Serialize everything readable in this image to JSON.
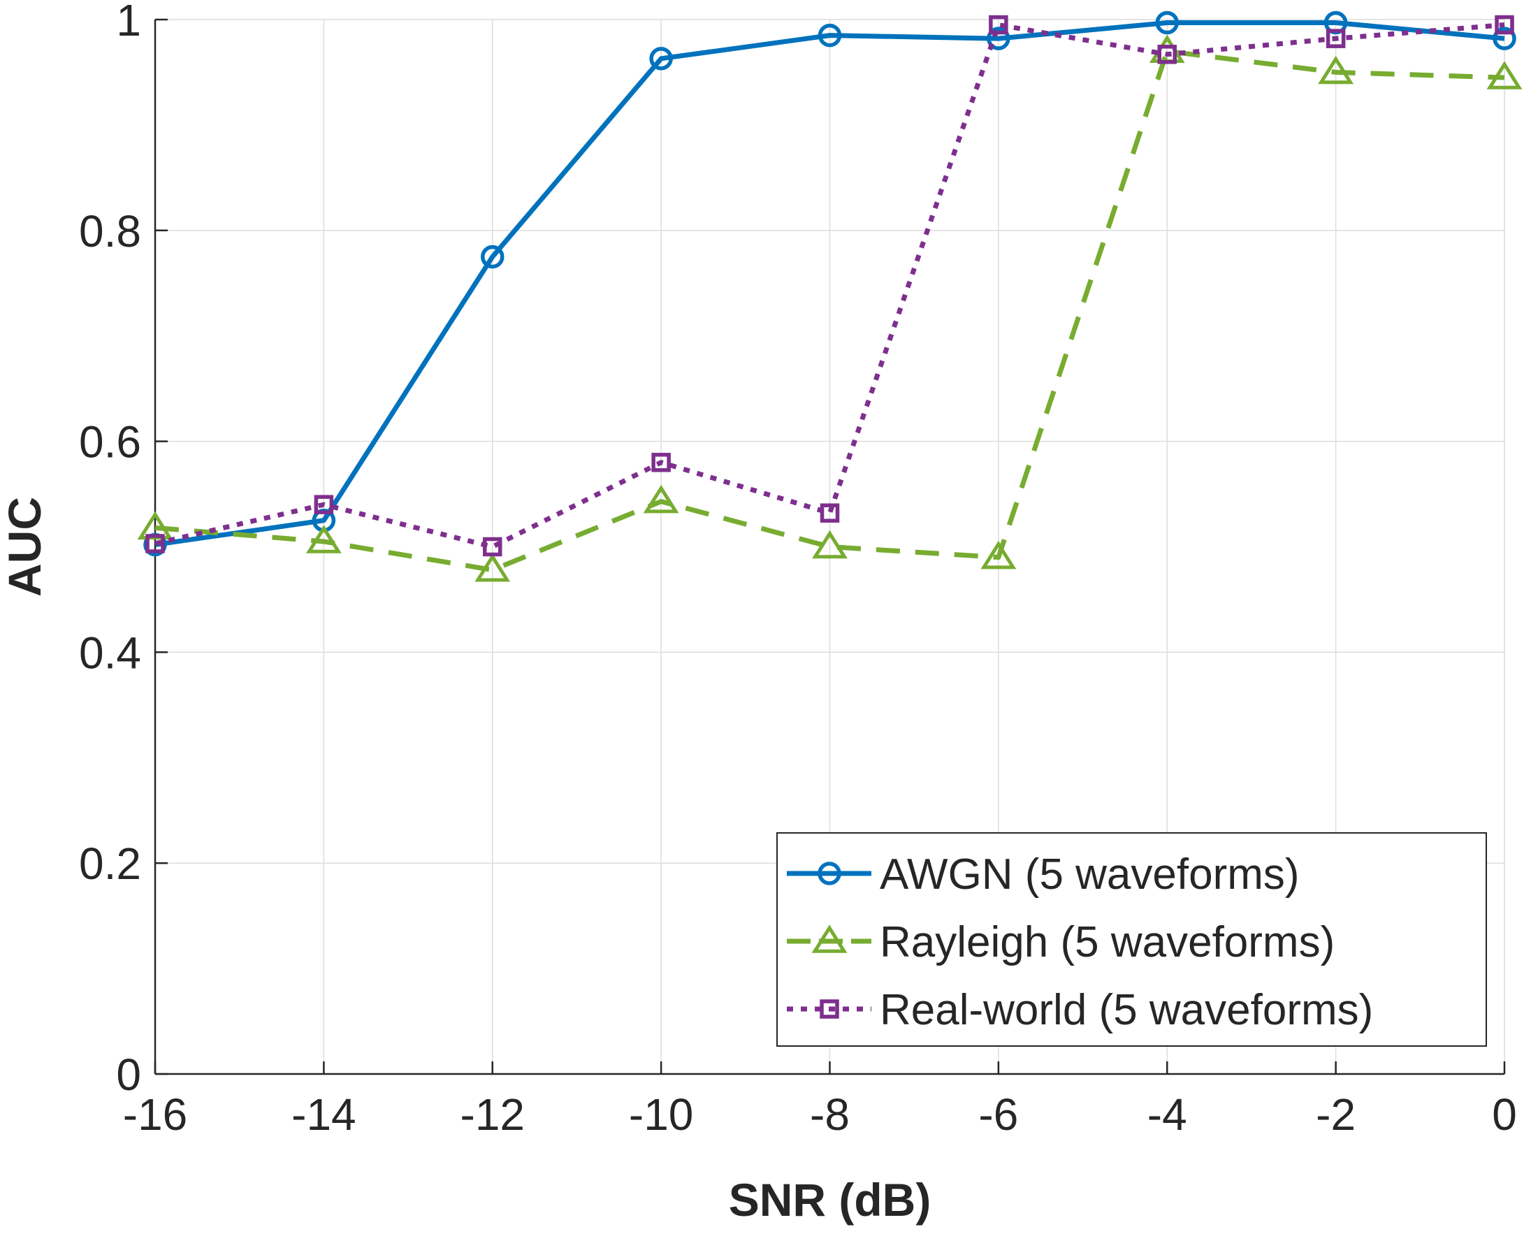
{
  "chart_data": {
    "type": "line",
    "xlabel": "SNR (dB)",
    "ylabel": "AUC",
    "x": [
      -16,
      -14,
      -12,
      -10,
      -8,
      -6,
      -4,
      -2,
      0
    ],
    "xlim": [
      -16,
      0
    ],
    "ylim": [
      0,
      1
    ],
    "xticks": [
      -16,
      -14,
      -12,
      -10,
      -8,
      -6,
      -4,
      -2,
      0
    ],
    "yticks": [
      0,
      0.2,
      0.4,
      0.6,
      0.8,
      1
    ],
    "xtick_labels": [
      "-16",
      "-14",
      "-12",
      "-10",
      "-8",
      "-6",
      "-4",
      "-2",
      "0"
    ],
    "ytick_labels": [
      "0",
      "0.2",
      "0.4",
      "0.6",
      "0.8",
      "1"
    ],
    "grid": true,
    "legend_position": "bottom-right",
    "series": [
      {
        "name": "AWGN (5 waveforms)",
        "values": [
          0.502,
          0.525,
          0.775,
          0.963,
          0.985,
          0.982,
          0.997,
          0.997,
          0.982
        ],
        "color": "#0072BD",
        "marker": "circle",
        "line_style": "solid"
      },
      {
        "name": "Rayleigh (5 waveforms)",
        "values": [
          0.518,
          0.505,
          0.478,
          0.543,
          0.5,
          0.49,
          0.97,
          0.95,
          0.945
        ],
        "color": "#77AC30",
        "marker": "triangle",
        "line_style": "dashed"
      },
      {
        "name": "Real-world (5 waveforms)",
        "values": [
          0.503,
          0.54,
          0.5,
          0.58,
          0.532,
          0.995,
          0.967,
          0.982,
          0.995
        ],
        "color": "#7E2F8E",
        "marker": "square",
        "line_style": "dotted"
      }
    ]
  }
}
